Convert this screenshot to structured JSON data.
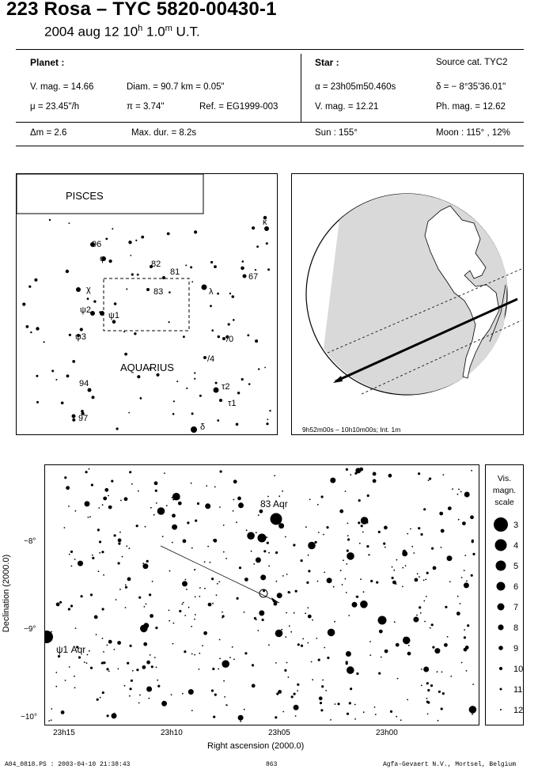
{
  "header": {
    "title": "223 Rosa  –  TYC 5820-00430-1",
    "subtitle_date": "2004 aug 12  10",
    "subtitle_h": "h",
    "subtitle_min": " 1.0",
    "subtitle_m": "m",
    "subtitle_ut": " U.T."
  },
  "planet": {
    "heading": "Planet :",
    "vmag": "V. mag. = 14.66",
    "diam": "Diam. = 90.7 km = 0.05\"",
    "mu": "μ =  23.45\"/h",
    "pi": "π =  3.74\"",
    "ref": "Ref. = EG1999-003"
  },
  "star": {
    "heading": "Star :",
    "source": "Source cat.  TYC2",
    "alpha": "α = 23h05m50.460s",
    "delta": "δ = − 8°35'36.01\"",
    "vmag": "V. mag. = 12.21",
    "phmag": "Ph. mag. = 12.62"
  },
  "summary": {
    "dm": "Δm = 2.6",
    "maxdur": "Max. dur. = 8.2s",
    "sun": "Sun : 155°",
    "moon": "Moon : 115° , 12%"
  },
  "constellation_map": {
    "box_label": "PISCES",
    "constellation_label": "AQUARIUS",
    "star_labels": [
      "96",
      "φ",
      "82",
      "81",
      "κ",
      "67",
      "χ",
      "83",
      "λ",
      "ψ2",
      "ψ1",
      "ψ3",
      "/0",
      "/4",
      "94",
      "τ2",
      "τ1",
      "97",
      "δ"
    ]
  },
  "globe": {
    "caption": "9h52m00s – 10h10m00s; Int.  1m"
  },
  "finder": {
    "label_83aqr": "83 Aqr",
    "label_psi1": "ψ1 Aqr",
    "y_ticks": [
      "−8°",
      "−9°",
      "−10°"
    ],
    "x_ticks": [
      "23h15",
      "23h10",
      "23h05",
      "23h00"
    ],
    "xlabel": "Right ascension (2000.0)",
    "ylabel": "Declination (2000.0)"
  },
  "scale": {
    "title_lines": [
      "Vis.",
      "magn.",
      "scale"
    ],
    "mags": [
      "3",
      "4",
      "5",
      "6",
      "7",
      "8",
      "9",
      "10",
      "11",
      "12"
    ]
  },
  "footer": {
    "left": "A04_0818.PS : 2003-04-10 21:38:43",
    "center": "863",
    "right": "Agfa-Gevaert N.V., Mortsel, Belgium"
  }
}
